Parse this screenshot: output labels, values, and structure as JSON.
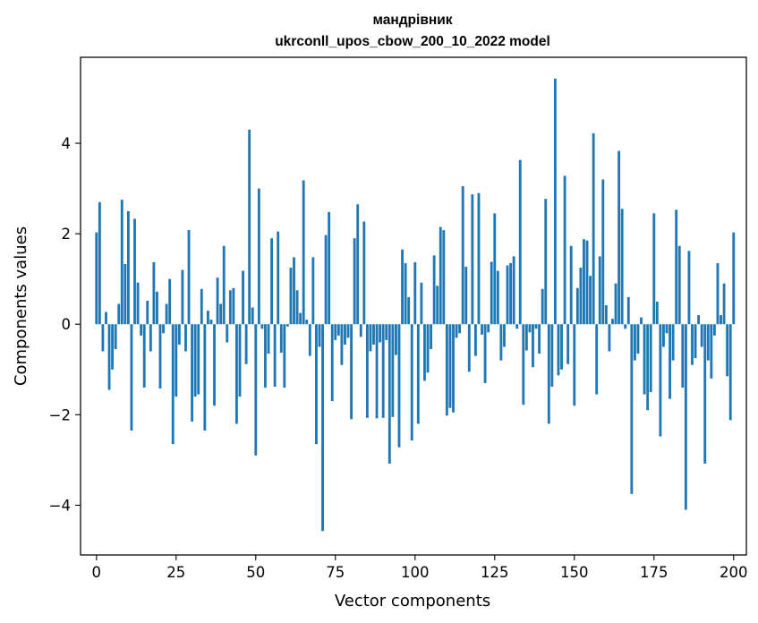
{
  "chart_data": {
    "type": "bar",
    "title": "мандрівник",
    "subtitle": "ukrconll_upos_cbow_200_10_2022 model",
    "xlabel": "Vector components",
    "ylabel": "Components values",
    "xlim": [
      -5,
      204
    ],
    "ylim": [
      -5.1,
      5.9
    ],
    "xticks": [
      0,
      25,
      50,
      75,
      100,
      125,
      150,
      175,
      200
    ],
    "yticks": [
      -4,
      -2,
      0,
      2,
      4
    ],
    "ytick_labels": [
      "−4",
      "−2",
      "0",
      "2",
      "4"
    ],
    "bar_color": "#1f77b4",
    "grid": false,
    "legend": "none",
    "values": [
      2.03,
      2.7,
      -0.6,
      0.27,
      -1.45,
      -1.0,
      -0.55,
      0.45,
      2.75,
      1.33,
      2.5,
      -2.35,
      2.33,
      0.92,
      -0.25,
      -1.4,
      0.52,
      -0.6,
      1.37,
      0.72,
      -1.42,
      -0.2,
      0.45,
      1.0,
      -2.65,
      -1.6,
      -0.45,
      1.2,
      -0.6,
      2.08,
      -2.15,
      -1.6,
      -1.55,
      0.78,
      -2.35,
      0.3,
      0.1,
      -1.8,
      1.03,
      0.45,
      1.73,
      -0.4,
      0.75,
      0.8,
      -2.2,
      -1.6,
      1.18,
      -0.88,
      4.3,
      0.37,
      -2.9,
      3.0,
      -0.1,
      -1.4,
      -0.65,
      1.9,
      -1.38,
      2.05,
      -0.63,
      -1.4,
      -0.05,
      1.25,
      1.48,
      0.75,
      0.25,
      3.18,
      0.1,
      -0.7,
      1.48,
      -2.65,
      -0.5,
      -4.57,
      1.97,
      2.48,
      -1.7,
      -0.35,
      -0.25,
      -0.9,
      -0.45,
      -0.3,
      -2.1,
      1.9,
      2.65,
      -0.28,
      2.27,
      -2.07,
      -0.6,
      -0.45,
      -2.08,
      -0.4,
      -2.07,
      -0.35,
      -3.08,
      -2.05,
      -0.68,
      -2.72,
      1.65,
      1.35,
      0.6,
      -2.57,
      1.37,
      -2.2,
      0.92,
      -1.25,
      -1.07,
      -0.55,
      1.52,
      0.85,
      2.15,
      2.08,
      -2.02,
      -1.85,
      -1.95,
      -0.3,
      -0.2,
      3.05,
      1.27,
      -1.05,
      2.87,
      -0.7,
      2.9,
      -0.23,
      -1.3,
      -0.18,
      1.38,
      2.45,
      1.18,
      -0.8,
      -0.5,
      1.3,
      1.35,
      1.5,
      -0.1,
      3.63,
      -1.78,
      -0.58,
      -0.18,
      -0.95,
      -0.1,
      -0.65,
      0.78,
      2.77,
      -2.2,
      -1.38,
      5.43,
      -1.13,
      -1.0,
      3.28,
      -0.88,
      1.73,
      -1.8,
      0.8,
      1.25,
      1.88,
      1.85,
      1.07,
      4.22,
      -1.55,
      1.5,
      3.2,
      0.42,
      -0.6,
      0.12,
      0.9,
      3.83,
      2.55,
      -0.1,
      0.6,
      -3.75,
      -0.8,
      -0.65,
      0.15,
      -1.55,
      -1.9,
      -1.5,
      2.45,
      0.5,
      -2.48,
      -0.5,
      -0.2,
      -1.65,
      -0.8,
      2.53,
      1.73,
      -1.4,
      -4.1,
      1.62,
      -0.9,
      -0.75,
      0.2,
      -0.5,
      -3.08,
      -0.8,
      -1.2,
      -0.25,
      1.35,
      0.2,
      0.9,
      -1.15,
      -2.12,
      2.03
    ]
  }
}
